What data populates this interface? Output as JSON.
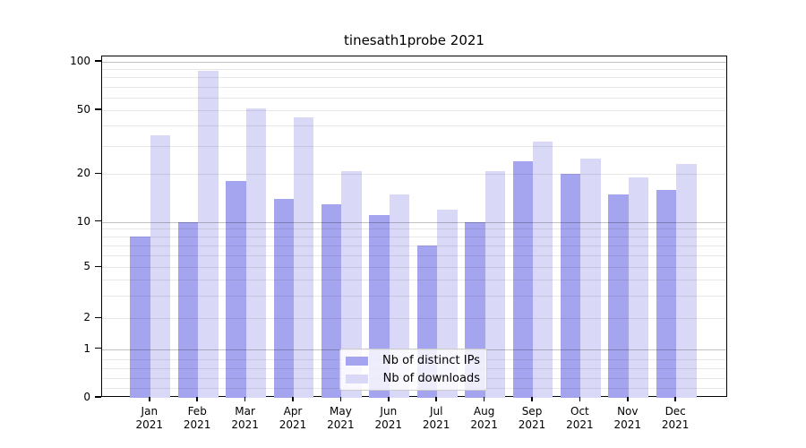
{
  "chart_data": {
    "type": "bar",
    "title": "tinesath1probe 2021",
    "months": [
      "Jan",
      "Feb",
      "Mar",
      "Apr",
      "May",
      "Jun",
      "Jul",
      "Aug",
      "Sep",
      "Oct",
      "Nov",
      "Dec"
    ],
    "year_label": "2021",
    "series": [
      {
        "name": "Nb of distinct IPs",
        "color": "#a5a5ef",
        "values": [
          8,
          10,
          18,
          14,
          13,
          11,
          7,
          10,
          24,
          20,
          15,
          16
        ]
      },
      {
        "name": "Nb of downloads",
        "color": "#d9d9f7",
        "values": [
          35,
          88,
          51,
          45,
          21,
          15,
          12,
          21,
          32,
          25,
          19,
          23
        ]
      }
    ],
    "y_ticks": [
      {
        "value": 0,
        "label": "0"
      },
      {
        "value": 1,
        "label": "1"
      },
      {
        "value": 2,
        "label": "2"
      },
      {
        "value": 5,
        "label": "5"
      },
      {
        "value": 10,
        "label": "10"
      },
      {
        "value": 20,
        "label": "20"
      },
      {
        "value": 50,
        "label": "50"
      },
      {
        "value": 100,
        "label": "100"
      }
    ],
    "ylim": [
      0,
      120
    ],
    "y_scale": "log-like with linear segment 0-1",
    "grid": {
      "major_values": [
        1,
        10,
        100
      ],
      "minor_values": [
        0.2,
        0.4,
        0.6,
        0.8,
        2,
        3,
        4,
        5,
        6,
        7,
        8,
        9,
        20,
        30,
        40,
        50,
        60,
        70,
        80,
        90
      ],
      "major_color": "rgba(0,0,0,0.24)",
      "minor_color": "rgba(0,0,0,0.09)"
    },
    "axis_color": "#000000",
    "text_color": "#000000",
    "legend_position": "bottom-center"
  }
}
